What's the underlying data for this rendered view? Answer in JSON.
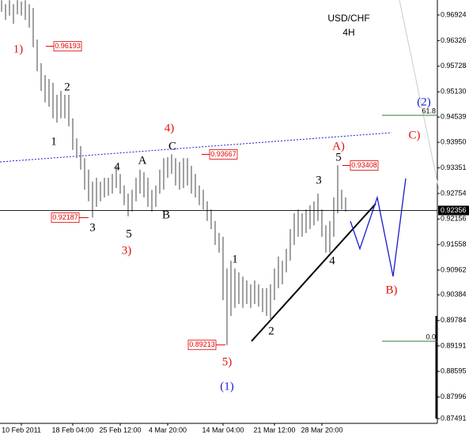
{
  "chart_data": {
    "type": "ohlc",
    "title": "USD/CHF",
    "subtitle": "4H",
    "bar_color": "#7a7a7a",
    "categories": [
      null,
      null,
      null,
      null,
      null,
      "10 Feb 2011",
      null,
      null,
      null,
      null,
      null,
      null,
      null,
      null,
      null,
      null,
      null,
      null,
      "18 Feb 04:00",
      null,
      null,
      null,
      null,
      null,
      null,
      null,
      null,
      null,
      null,
      null,
      "25 Feb 12:00",
      null,
      null,
      null,
      null,
      null,
      null,
      null,
      null,
      null,
      null,
      null,
      "4 Mar 20:00",
      null,
      null,
      null,
      null,
      null,
      null,
      null,
      null,
      null,
      null,
      null,
      null,
      null,
      "14 Mar 04:00",
      null,
      null,
      null,
      null,
      null,
      null,
      null,
      null,
      null,
      null,
      null,
      null,
      "21 Mar 12:00",
      null,
      null,
      null,
      null,
      null,
      null,
      null,
      null,
      null,
      null,
      null,
      "28 Mar 20:00",
      null,
      null,
      null,
      null,
      null,
      null
    ],
    "high": [
      0.9727,
      0.9718,
      0.9727,
      0.9718,
      0.9727,
      0.9724,
      0.9727,
      0.9718,
      0.9709,
      0.9635,
      0.958,
      0.9552,
      0.9543,
      0.9534,
      0.9506,
      0.9515,
      0.9506,
      0.9506,
      0.9451,
      0.9404,
      0.9386,
      0.9358,
      0.9331,
      0.9303,
      0.9312,
      0.9303,
      0.9312,
      0.9312,
      0.9321,
      0.934,
      0.9321,
      0.9294,
      0.9275,
      0.9284,
      0.9312,
      0.9331,
      0.9325,
      0.9312,
      0.9284,
      0.9294,
      0.9331,
      0.9358,
      0.936,
      0.9367,
      0.9358,
      0.9349,
      0.9358,
      0.9358,
      0.934,
      0.9321,
      0.9294,
      0.9284,
      0.9257,
      0.9238,
      0.9211,
      0.9183,
      0.9174,
      0.91,
      0.9118,
      0.91,
      0.9091,
      0.9081,
      0.9072,
      0.9063,
      0.9072,
      0.9063,
      0.9054,
      0.9054,
      0.9063,
      0.91,
      0.9128,
      0.9118,
      0.9146,
      0.9192,
      0.9229,
      0.9238,
      0.9229,
      0.9238,
      0.9248,
      0.9257,
      0.9275,
      0.9238,
      0.9201,
      0.9211,
      0.9266,
      0.9341,
      0.9284,
      0.9266
    ],
    "low": [
      0.97,
      0.9681,
      0.9691,
      0.9672,
      0.9694,
      0.9691,
      0.9681,
      0.9663,
      0.9617,
      0.9561,
      0.9515,
      0.9488,
      0.9478,
      0.9451,
      0.9441,
      0.9451,
      0.9451,
      0.9432,
      0.9377,
      0.9358,
      0.9331,
      0.9284,
      0.9257,
      0.9219,
      0.9244,
      0.9257,
      0.9266,
      0.927,
      0.9275,
      0.9288,
      0.9275,
      0.9248,
      0.9222,
      0.9233,
      0.9257,
      0.9275,
      0.9266,
      0.9244,
      0.9233,
      0.9244,
      0.9275,
      0.9284,
      0.9312,
      0.9321,
      0.9294,
      0.9284,
      0.9288,
      0.9294,
      0.9275,
      0.9266,
      0.9248,
      0.9238,
      0.9211,
      0.9192,
      0.9155,
      0.9137,
      0.9026,
      0.8921,
      0.8989,
      0.9008,
      0.9017,
      0.9008,
      0.9017,
      0.9008,
      0.9017,
      0.9011,
      0.8998,
      0.8989,
      0.898,
      0.9026,
      0.9054,
      0.9063,
      0.9091,
      0.9118,
      0.9155,
      0.9174,
      0.9174,
      0.9183,
      0.9192,
      0.9201,
      0.9211,
      0.9174,
      0.9137,
      0.9137,
      0.9174,
      0.9229,
      0.9238,
      0.9233
    ],
    "ylim": [
      0.8738,
      0.97275
    ],
    "yticks": [
      0.96924,
      0.96326,
      0.95728,
      {
        "value": 0.9513,
        "label": "0.95130"
      },
      0.94539,
      {
        "value": 0.9395,
        "label": "0.93950"
      },
      0.93351,
      0.92754,
      0.92156,
      0.91558,
      0.90962,
      0.90384,
      0.89784,
      0.89191,
      0.88595,
      0.87996,
      0.87491
    ],
    "current_price": 0.92356,
    "price_tags": [
      0.96193,
      0.92187,
      0.93667,
      0.89213,
      0.93408
    ],
    "fib_levels": [
      {
        "label": "61.8",
        "price": 0.9458,
        "color": "#2e7d32"
      },
      {
        "label": "0.0",
        "price": 0.893,
        "color": "#2e7d32"
      }
    ],
    "annotations": [
      {
        "text": "1)",
        "color": "#e01010"
      },
      {
        "text": "2",
        "color": "#000000"
      },
      {
        "text": "1",
        "color": "#000000"
      },
      {
        "text": "4)",
        "color": "#e01010"
      },
      {
        "text": "C",
        "color": "#000000"
      },
      {
        "text": "A",
        "color": "#000000"
      },
      {
        "text": "4",
        "color": "#000000"
      },
      {
        "text": "3",
        "color": "#000000"
      },
      {
        "text": "5",
        "color": "#000000"
      },
      {
        "text": "3)",
        "color": "#e01010"
      },
      {
        "text": "B",
        "color": "#000000"
      },
      {
        "text": "5)",
        "color": "#e01010"
      },
      {
        "text": "(1)",
        "color": "#1a1ad0"
      },
      {
        "text": "1",
        "color": "#000000"
      },
      {
        "text": "2",
        "color": "#000000"
      },
      {
        "text": "3",
        "color": "#000000"
      },
      {
        "text": "4",
        "color": "#000000"
      },
      {
        "text": "5",
        "color": "#000000"
      },
      {
        "text": "A)",
        "color": "#e01010"
      },
      {
        "text": "(2)",
        "color": "#1a1ad0"
      },
      {
        "text": "C)",
        "color": "#e01010"
      },
      {
        "text": "B)",
        "color": "#e01010"
      }
    ]
  }
}
